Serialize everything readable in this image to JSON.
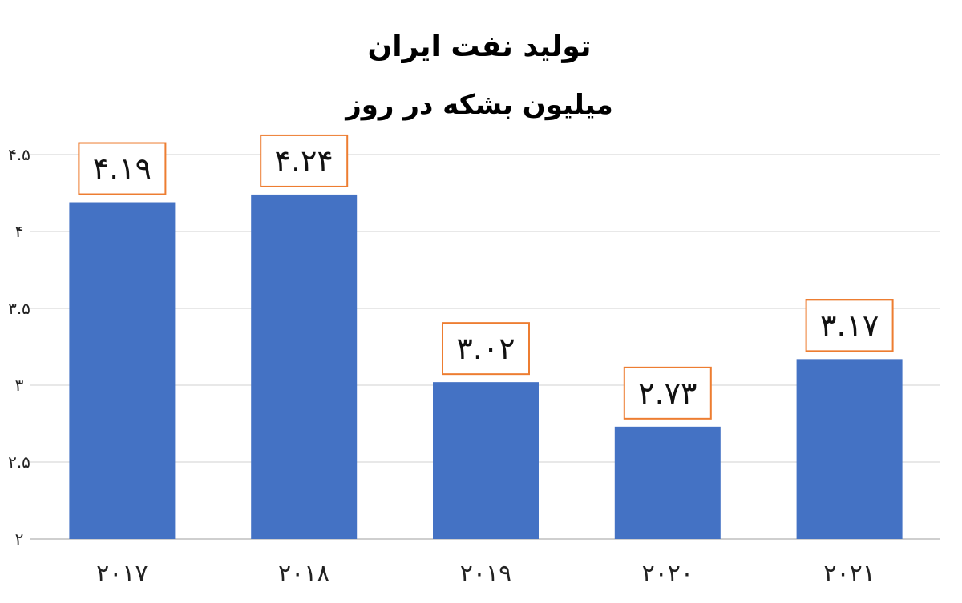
{
  "chart_data": {
    "type": "bar",
    "title": "تولید نفت ایران",
    "subtitle": "میلیون بشکه در روز",
    "categories": [
      "۲۰۱۷",
      "۲۰۱۸",
      "۲۰۱۹",
      "۲۰۲۰",
      "۲۰۲۱"
    ],
    "values": [
      4.19,
      4.24,
      3.02,
      2.73,
      3.17
    ],
    "data_labels": [
      "۴.۱۹",
      "۴.۲۴",
      "۳.۰۲",
      "۲.۷۳",
      "۳.۱۷"
    ],
    "y_ticks": [
      2,
      2.5,
      3,
      3.5,
      4,
      4.5
    ],
    "y_tick_labels": [
      "۲",
      "۲.۵",
      "۳",
      "۳.۵",
      "۴",
      "۴.۵"
    ],
    "ylim": [
      2,
      4.5
    ],
    "grid": true,
    "legend": "none",
    "colors": {
      "bar": "#4472C4",
      "label_border": "#ED7D31",
      "grid": "#D9D9D9",
      "axis": "#BFBFBF"
    }
  }
}
